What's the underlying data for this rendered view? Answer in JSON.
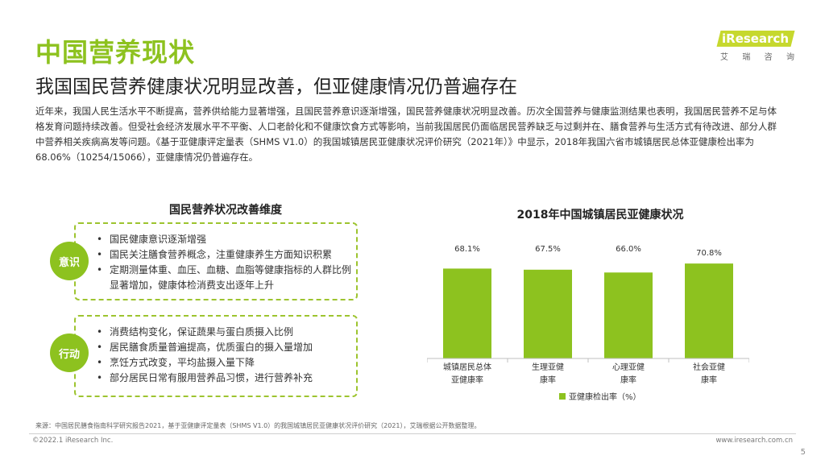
{
  "header": {
    "title": "中国营养现状",
    "subtitle": "我国国民营养健康状况明显改善，但亚健康情况仍普遍存在"
  },
  "logo": {
    "text": "iResearch",
    "chars": [
      "艾",
      "瑞",
      "咨",
      "询"
    ]
  },
  "intro": "近年来，我国人民生活水平不断提高，营养供给能力显著增强，且国民营养意识逐渐增强，国民营养健康状况明显改善。历次全国营养与健康监测结果也表明，我国居民营养不足与体格发育问题持续改善。但受社会经济发展水平不平衡、人口老龄化和不健康饮食方式等影响，当前我国居民仍面临居民营养缺乏与过剩并在、膳食营养与生活方式有待改进、部分人群中营养相关疾病高发等问题。《基于亚健康评定量表（SHMS V1.0）的我国城镇居民亚健康状况评价研究（2021年）》中显示，2018年我国六省市城镇居民总体亚健康检出率为68.06%（10254/15066），亚健康情况仍普遍存在。",
  "left_panel": {
    "title": "国民营养状况改善维度",
    "groups": [
      {
        "badge": "意识",
        "items": [
          "国民健康意识逐渐增强",
          "国民关注膳食营养概念，注重健康养生方面知识积累",
          "定期测量体重、血压、血糖、血脂等健康指标的人群比例显著增加，健康体检消费支出逐年上升"
        ]
      },
      {
        "badge": "行动",
        "items": [
          "消费结构变化，保证蔬果与蛋白质摄入比例",
          "居民膳食质量普遍提高，优质蛋白的摄入量增加",
          "烹饪方式改变，平均盐摄入量下降",
          "部分居民日常有服用营养品习惯，进行营养补充"
        ]
      }
    ]
  },
  "chart_data": {
    "type": "bar",
    "title": "2018年中国城镇居民亚健康状况",
    "categories": [
      [
        "城镇居民总体",
        "亚健康率"
      ],
      [
        "生理亚健",
        "康率"
      ],
      [
        "心理亚健",
        "康率"
      ],
      [
        "社会亚健",
        "康率"
      ]
    ],
    "values": [
      68.1,
      67.5,
      66.0,
      70.8
    ],
    "value_labels": [
      "68.1%",
      "67.5%",
      "66.0%",
      "70.8%"
    ],
    "series": [
      {
        "name": "亚健康检出率（%）",
        "values": [
          68.1,
          67.5,
          66.0,
          70.8
        ]
      }
    ],
    "legend_position": "bottom",
    "grid": false,
    "color": "#8dc21f"
  },
  "footer": {
    "source": "来源：中国居民膳食指南科学研究报告2021，基于亚健康评定量表（SHMS V1.0）的我国城镇居民亚健康状况评价研究（2021），艾瑞根据公开数据整理。",
    "copyright": "©2022.1 iResearch Inc.",
    "website": "www.iresearch.com.cn",
    "page": "5"
  }
}
